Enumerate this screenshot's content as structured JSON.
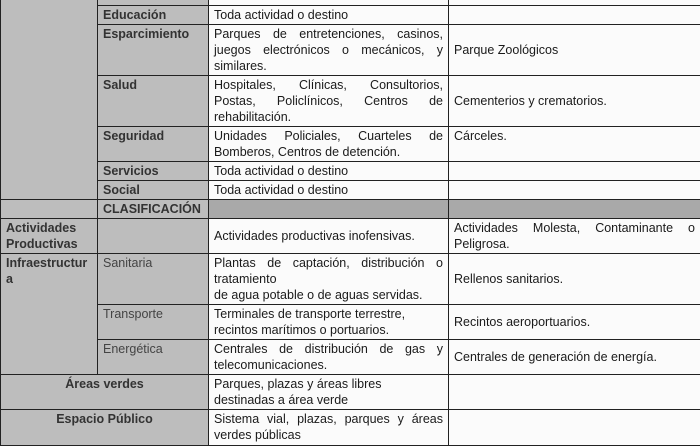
{
  "rows": {
    "educacion": {
      "sub": "Educación",
      "allowed": "Toda actividad o destino",
      "prohibited": ""
    },
    "esparcimiento": {
      "sub": "Esparcimiento",
      "allowed": "Parques de entretenciones, casinos, juegos electrónicos o mecánicos, y similares.",
      "prohibited": "Parque Zoológicos"
    },
    "salud": {
      "sub": "Salud",
      "allowed": "Hospitales, Clínicas, Consultorios, Postas, Policlínicos, Centros de rehabilitación.",
      "prohibited": "Cementerios y crematorios."
    },
    "seguridad": {
      "sub": "Seguridad",
      "allowed": "Unidades Policiales, Cuarteles de Bomberos, Centros de detención.",
      "prohibited": "Cárceles."
    },
    "servicios": {
      "sub": "Servicios",
      "allowed": "Toda actividad o destino",
      "prohibited": ""
    },
    "social": {
      "sub": "Social",
      "allowed": "Toda actividad o destino",
      "prohibited": ""
    },
    "clasificacion": {
      "label": "CLASIFICACIÓN"
    },
    "actividades": {
      "main": "Actividades Productivas",
      "allowed": "Actividades productivas inofensivas.",
      "prohibited": "Actividades Molesta, Contaminante o Peligrosa."
    },
    "infra": {
      "main": "Infraestructura"
    },
    "sanitaria": {
      "sub": "Sanitaria",
      "allowed_1": "Plantas de captación, distribución o tratamiento",
      "allowed_2": "de agua potable o de aguas servidas.",
      "prohibited": "Rellenos sanitarios."
    },
    "transporte": {
      "sub": "Transporte",
      "allowed": "Terminales de transporte terrestre, recintos marítimos o portuarios.",
      "prohibited": "Recintos aeroportuarios."
    },
    "energetica": {
      "sub": "Energética",
      "allowed": "Centrales de distribución de gas y telecomunicaciones.",
      "prohibited": "Centrales de generación de energía."
    },
    "areas_verdes": {
      "main": "Áreas verdes",
      "allowed": "Parques, plazas y áreas libres destinadas a área verde",
      "prohibited": ""
    },
    "espacio_publico": {
      "main": "Espacio Público",
      "allowed": "Sistema vial, plazas, parques y áreas verdes públicas",
      "prohibited": ""
    }
  }
}
